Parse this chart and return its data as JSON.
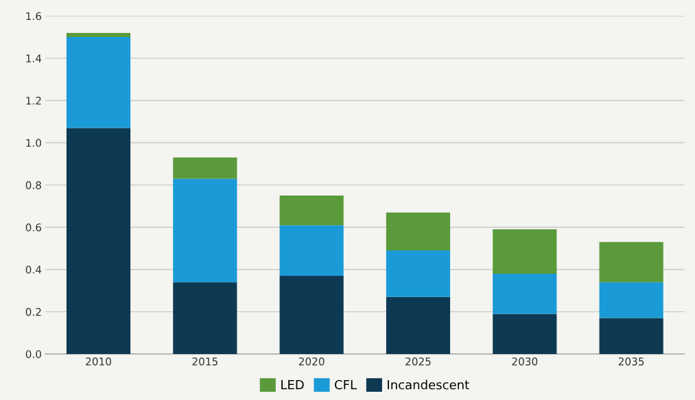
{
  "chart_data": {
    "type": "bar",
    "stacked": true,
    "categories": [
      "2010",
      "2015",
      "2020",
      "2025",
      "2030",
      "2035"
    ],
    "series": [
      {
        "name": "Incandescent",
        "color": "#0d3a52",
        "values": [
          1.07,
          0.34,
          0.37,
          0.27,
          0.19,
          0.17
        ]
      },
      {
        "name": "CFL",
        "color": "#1a9ad6",
        "values": [
          0.43,
          0.49,
          0.24,
          0.22,
          0.19,
          0.17
        ]
      },
      {
        "name": "LED",
        "color": "#5a9a3a",
        "values": [
          0.02,
          0.1,
          0.14,
          0.18,
          0.21,
          0.19
        ]
      }
    ],
    "ylim": [
      0,
      1.6
    ],
    "yticks": [
      {
        "value": 0,
        "label": "0.0"
      },
      {
        "value": 0.2,
        "label": "0.2"
      },
      {
        "value": 0.4,
        "label": "0.4"
      },
      {
        "value": 0.6,
        "label": "0.6"
      },
      {
        "value": 0.8,
        "label": "0.8"
      },
      {
        "value": 1.0,
        "label": "1.0"
      },
      {
        "value": 1.2,
        "label": "1.2"
      },
      {
        "value": 1.4,
        "label": "1.4"
      },
      {
        "value": 1.6,
        "label": "1.6"
      }
    ],
    "grid": "y",
    "legend": "bottom"
  }
}
